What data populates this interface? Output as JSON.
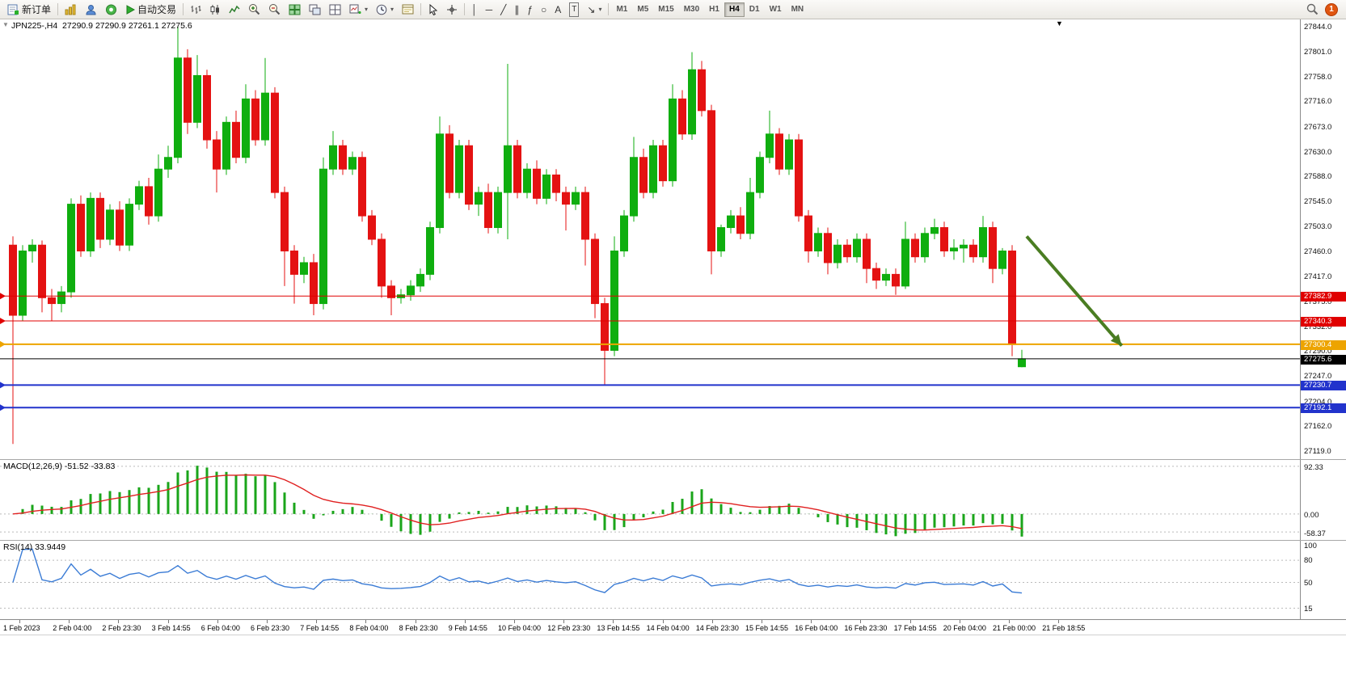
{
  "toolbar": {
    "new_order_label": "新订单",
    "auto_trading_label": "自动交易",
    "text_a": "A",
    "text_t": "T",
    "glyphs": {
      "vline": "│",
      "hline": "─",
      "trendline": "╱",
      "channel": "∥",
      "fibo": "ƒ",
      "shapes": "○",
      "arrows": "↘",
      "dropdown": "▾",
      "collapse": "▼",
      "shift": "▼"
    },
    "timeframes": [
      {
        "label": "M1",
        "active": false
      },
      {
        "label": "M5",
        "active": false
      },
      {
        "label": "M15",
        "active": false
      },
      {
        "label": "M30",
        "active": false
      },
      {
        "label": "H1",
        "active": false
      },
      {
        "label": "H4",
        "active": true
      },
      {
        "label": "D1",
        "active": false
      },
      {
        "label": "W1",
        "active": false
      },
      {
        "label": "MN",
        "active": false
      }
    ],
    "notification_count": "1"
  },
  "chart_header": {
    "symbol": "JPN225-,H4",
    "open": "27290.9",
    "high": "27290.9",
    "low": "27261.1",
    "close": "27275.6"
  },
  "price_axis_ticks": [
    "27844.0",
    "27801.0",
    "27758.0",
    "27716.0",
    "27673.0",
    "27630.0",
    "27588.0",
    "27545.0",
    "27503.0",
    "27460.0",
    "27417.0",
    "27375.0",
    "27332.0",
    "27290.0",
    "27247.0",
    "27204.0",
    "27162.0",
    "27119.0"
  ],
  "hlines": [
    {
      "price": 27382.9,
      "label": "27382.9",
      "color": "#e00000",
      "width": 1
    },
    {
      "price": 27340.3,
      "label": "27340.3",
      "color": "#e00000",
      "width": 1
    },
    {
      "price": 27300.4,
      "label": "27300.4",
      "color": "#eda400",
      "width": 2
    },
    {
      "price": 27230.7,
      "label": "27230.7",
      "color": "#2233cc",
      "width": 2
    },
    {
      "price": 27192.1,
      "label": "27192.1",
      "color": "#2233cc",
      "width": 2
    }
  ],
  "current_price": {
    "price": 27275.6,
    "label": "27275.6",
    "color": "#000000"
  },
  "annotation_arrow": {
    "from_index": 104.5,
    "from_price": 27485,
    "to_index": 114.3,
    "to_price": 27298,
    "color": "#4a7d22"
  },
  "macd_panel": {
    "label": "MACD(12,26,9) -51.52 -33.83",
    "axis_top": "92.33",
    "axis_zero": "0.00",
    "axis_bottom": "-58.37",
    "fast": 12,
    "slow": 26,
    "signal": 9,
    "histogram_color": "#1aa51a",
    "signal_color": "#e02020"
  },
  "rsi_panel": {
    "label": "RSI(14) 33.9449",
    "period": 14,
    "line_color": "#3a7bd5",
    "axis_labels": [
      {
        "value": 100,
        "label": "100"
      },
      {
        "value": 80,
        "label": "80"
      },
      {
        "value": 50,
        "label": "50"
      },
      {
        "value": 15,
        "label": "15"
      }
    ],
    "levels": [
      80,
      50,
      15
    ]
  },
  "time_axis": [
    "1 Feb 2023",
    "2 Feb 04:00",
    "2 Feb 23:30",
    "3 Feb 14:55",
    "6 Feb 04:00",
    "6 Feb 23:30",
    "7 Feb 14:55",
    "8 Feb 04:00",
    "8 Feb 23:30",
    "9 Feb 14:55",
    "10 Feb 04:00",
    "12 Feb 23:30",
    "13 Feb 14:55",
    "14 Feb 04:00",
    "14 Feb 23:30",
    "15 Feb 14:55",
    "16 Feb 04:00",
    "16 Feb 23:30",
    "17 Feb 14:55",
    "20 Feb 04:00",
    "21 Feb 00:00",
    "21 Feb 18:55"
  ],
  "chart_data": {
    "type": "candlestick",
    "symbol": "JPN225-",
    "timeframe": "H4",
    "title": "JPN225-,H4 27290.9 27290.9 27261.1 27275.6",
    "ylim": [
      27104,
      27856
    ],
    "bull_color": "#0fae0f",
    "bear_color": "#e41212",
    "candles": [
      [
        27470,
        27485,
        27130,
        27350
      ],
      [
        27350,
        27470,
        27340,
        27460
      ],
      [
        27460,
        27480,
        27440,
        27470
      ],
      [
        27470,
        27478,
        27355,
        27380
      ],
      [
        27380,
        27395,
        27340,
        27370
      ],
      [
        27370,
        27400,
        27355,
        27390
      ],
      [
        27390,
        27550,
        27380,
        27540
      ],
      [
        27540,
        27555,
        27450,
        27460
      ],
      [
        27460,
        27560,
        27450,
        27550
      ],
      [
        27550,
        27560,
        27465,
        27480
      ],
      [
        27480,
        27540,
        27470,
        27530
      ],
      [
        27530,
        27545,
        27460,
        27470
      ],
      [
        27470,
        27550,
        27460,
        27540
      ],
      [
        27540,
        27580,
        27530,
        27570
      ],
      [
        27570,
        27585,
        27505,
        27520
      ],
      [
        27520,
        27625,
        27510,
        27600
      ],
      [
        27600,
        27640,
        27585,
        27620
      ],
      [
        27620,
        27844,
        27610,
        27790
      ],
      [
        27790,
        27805,
        27660,
        27680
      ],
      [
        27680,
        27795,
        27670,
        27760
      ],
      [
        27760,
        27770,
        27635,
        27650
      ],
      [
        27650,
        27665,
        27560,
        27600
      ],
      [
        27600,
        27690,
        27590,
        27680
      ],
      [
        27680,
        27700,
        27610,
        27620
      ],
      [
        27620,
        27745,
        27610,
        27720
      ],
      [
        27720,
        27735,
        27640,
        27650
      ],
      [
        27650,
        27790,
        27640,
        27730
      ],
      [
        27730,
        27740,
        27550,
        27560
      ],
      [
        27560,
        27570,
        27400,
        27460
      ],
      [
        27460,
        27470,
        27370,
        27420
      ],
      [
        27420,
        27450,
        27405,
        27440
      ],
      [
        27440,
        27455,
        27350,
        27370
      ],
      [
        27370,
        27620,
        27360,
        27600
      ],
      [
        27600,
        27665,
        27590,
        27640
      ],
      [
        27640,
        27650,
        27590,
        27600
      ],
      [
        27600,
        27630,
        27590,
        27620
      ],
      [
        27620,
        27630,
        27510,
        27520
      ],
      [
        27520,
        27530,
        27470,
        27480
      ],
      [
        27480,
        27490,
        27380,
        27400
      ],
      [
        27400,
        27410,
        27350,
        27380
      ],
      [
        27380,
        27395,
        27370,
        27385
      ],
      [
        27385,
        27410,
        27375,
        27400
      ],
      [
        27400,
        27430,
        27390,
        27420
      ],
      [
        27420,
        27510,
        27410,
        27500
      ],
      [
        27500,
        27690,
        27490,
        27660
      ],
      [
        27660,
        27675,
        27550,
        27560
      ],
      [
        27560,
        27650,
        27550,
        27640
      ],
      [
        27640,
        27650,
        27530,
        27540
      ],
      [
        27540,
        27570,
        27520,
        27560
      ],
      [
        27560,
        27575,
        27490,
        27500
      ],
      [
        27500,
        27570,
        27490,
        27560
      ],
      [
        27560,
        27780,
        27480,
        27640
      ],
      [
        27640,
        27650,
        27550,
        27560
      ],
      [
        27560,
        27610,
        27550,
        27600
      ],
      [
        27600,
        27615,
        27540,
        27550
      ],
      [
        27550,
        27600,
        27540,
        27590
      ],
      [
        27590,
        27600,
        27545,
        27560
      ],
      [
        27560,
        27570,
        27495,
        27540
      ],
      [
        27540,
        27570,
        27530,
        27560
      ],
      [
        27560,
        27570,
        27435,
        27480
      ],
      [
        27480,
        27490,
        27345,
        27370
      ],
      [
        27370,
        27380,
        27230,
        27290
      ],
      [
        27290,
        27485,
        27280,
        27460
      ],
      [
        27460,
        27530,
        27450,
        27520
      ],
      [
        27520,
        27655,
        27510,
        27620
      ],
      [
        27620,
        27635,
        27550,
        27560
      ],
      [
        27560,
        27650,
        27550,
        27640
      ],
      [
        27640,
        27650,
        27570,
        27580
      ],
      [
        27580,
        27745,
        27570,
        27720
      ],
      [
        27720,
        27735,
        27650,
        27660
      ],
      [
        27660,
        27800,
        27650,
        27770
      ],
      [
        27770,
        27785,
        27690,
        27700
      ],
      [
        27700,
        27710,
        27420,
        27460
      ],
      [
        27460,
        27505,
        27450,
        27500
      ],
      [
        27500,
        27530,
        27490,
        27520
      ],
      [
        27520,
        27535,
        27480,
        27490
      ],
      [
        27490,
        27585,
        27480,
        27560
      ],
      [
        27560,
        27630,
        27550,
        27620
      ],
      [
        27620,
        27700,
        27610,
        27660
      ],
      [
        27660,
        27670,
        27590,
        27600
      ],
      [
        27600,
        27660,
        27590,
        27650
      ],
      [
        27650,
        27660,
        27510,
        27520
      ],
      [
        27520,
        27530,
        27440,
        27460
      ],
      [
        27460,
        27500,
        27450,
        27490
      ],
      [
        27490,
        27500,
        27420,
        27440
      ],
      [
        27440,
        27480,
        27430,
        27470
      ],
      [
        27470,
        27480,
        27440,
        27450
      ],
      [
        27450,
        27490,
        27440,
        27480
      ],
      [
        27480,
        27490,
        27405,
        27430
      ],
      [
        27430,
        27440,
        27395,
        27410
      ],
      [
        27410,
        27430,
        27400,
        27420
      ],
      [
        27420,
        27430,
        27385,
        27400
      ],
      [
        27400,
        27510,
        27395,
        27480
      ],
      [
        27480,
        27490,
        27440,
        27450
      ],
      [
        27450,
        27500,
        27440,
        27490
      ],
      [
        27490,
        27515,
        27480,
        27500
      ],
      [
        27500,
        27510,
        27450,
        27460
      ],
      [
        27460,
        27480,
        27445,
        27465
      ],
      [
        27465,
        27480,
        27440,
        27470
      ],
      [
        27470,
        27480,
        27440,
        27450
      ],
      [
        27450,
        27520,
        27440,
        27500
      ],
      [
        27500,
        27510,
        27405,
        27430
      ],
      [
        27430,
        27465,
        27420,
        27460
      ],
      [
        27460,
        27470,
        27280,
        27300
      ],
      [
        27262,
        27290.9,
        27261.1,
        27275.6
      ]
    ]
  }
}
